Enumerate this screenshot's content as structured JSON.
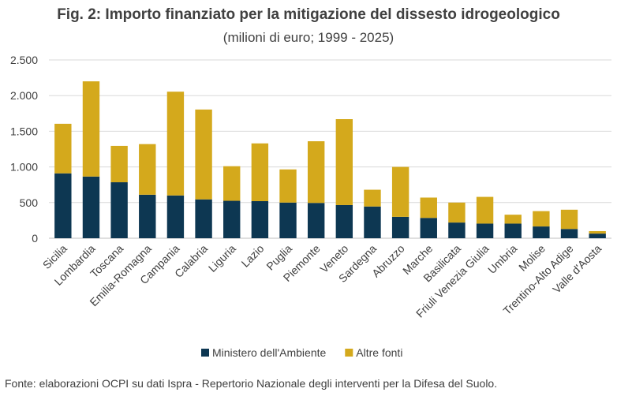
{
  "chart_data": {
    "type": "bar",
    "stacked": true,
    "title": "Fig. 2: Importo finanziato per la mitigazione del dissesto idrogeologico",
    "subtitle": "(milioni di euro; 1999 - 2025)",
    "categories": [
      "Sicilia",
      "Lombardia",
      "Toscana",
      "Emilia-Romagna",
      "Campania",
      "Calabria",
      "Liguria",
      "Lazio",
      "Puglia",
      "Piemonte",
      "Veneto",
      "Sardegna",
      "Abruzzo",
      "Marche",
      "Basilicata",
      "Friuli Venezia Giulia",
      "Umbria",
      "Molise",
      "Trentino-Alto Adige",
      "Valle d'Aosta"
    ],
    "series": [
      {
        "name": "Ministero dell'Ambiente",
        "color": "#0d3752",
        "values": [
          910,
          865,
          785,
          610,
          600,
          545,
          525,
          520,
          500,
          495,
          465,
          445,
          300,
          285,
          220,
          205,
          205,
          165,
          130,
          65
        ]
      },
      {
        "name": "Altre fonti",
        "color": "#d4a91c",
        "values": [
          695,
          1335,
          510,
          710,
          1455,
          1260,
          485,
          810,
          465,
          865,
          1205,
          235,
          700,
          285,
          280,
          375,
          125,
          215,
          270,
          35
        ]
      }
    ],
    "ylim": [
      0,
      2500
    ],
    "yticks": [
      0,
      500,
      1000,
      1500,
      2000,
      2500
    ],
    "ytick_labels": [
      "0",
      "500",
      "1.000",
      "1.500",
      "2.000",
      "2.500"
    ],
    "grid": true,
    "legend_position": "bottom"
  },
  "source": "Fonte: elaborazioni OCPI su dati Ispra - Repertorio Nazionale degli interventi per la Difesa del Suolo."
}
